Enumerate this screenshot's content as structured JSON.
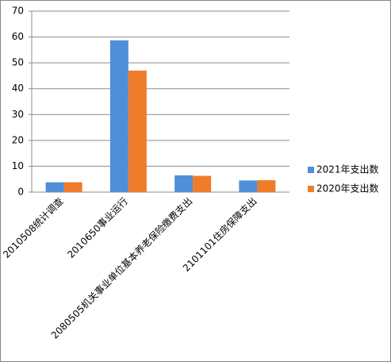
{
  "chart_data": {
    "type": "bar",
    "categories": [
      "2010508统计调查",
      "2010650事业运行",
      "2080505机关事业单位基本养老保险缴费支出",
      "2101101住房保障支出"
    ],
    "series": [
      {
        "name": "2021年支出数",
        "color": "#4f8fd9",
        "values": [
          3.8,
          58.7,
          6.5,
          4.5
        ]
      },
      {
        "name": "2020年支出数",
        "color": "#f07b28",
        "values": [
          3.8,
          47,
          6.3,
          4.6
        ]
      }
    ],
    "ylim": [
      0,
      70
    ],
    "yticks": [
      0,
      10,
      20,
      30,
      40,
      50,
      60,
      70
    ],
    "grid": true,
    "legend": "right"
  }
}
